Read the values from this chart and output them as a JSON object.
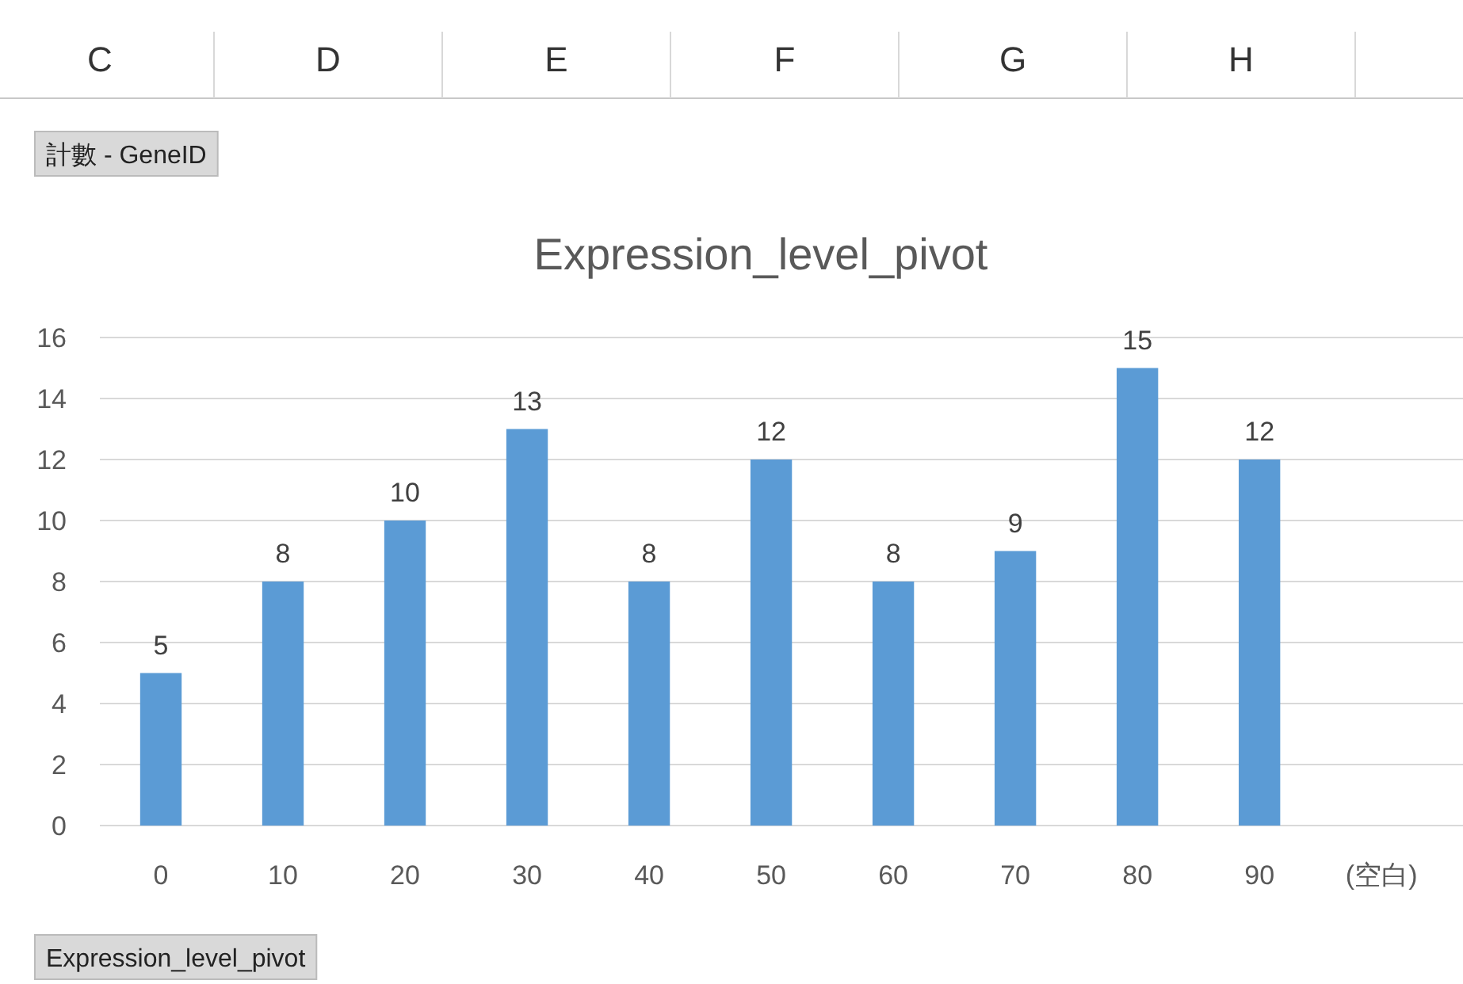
{
  "chart_data": {
    "type": "bar",
    "title": "Expression_level_pivot",
    "categories": [
      "0",
      "10",
      "20",
      "30",
      "40",
      "50",
      "60",
      "70",
      "80",
      "90",
      "(空白)"
    ],
    "values": [
      5,
      8,
      10,
      13,
      8,
      12,
      8,
      9,
      15,
      12,
      null
    ],
    "color": "#5b9bd5",
    "ylim": [
      0,
      16
    ],
    "yticks": [
      0,
      2,
      4,
      6,
      8,
      10,
      12,
      14,
      16
    ],
    "grid": "y",
    "data_labels": true,
    "annotations": [
      "計數 - GeneID",
      "Expression_level_pivot",
      "C",
      "D",
      "E",
      "F",
      "G",
      "H"
    ]
  }
}
